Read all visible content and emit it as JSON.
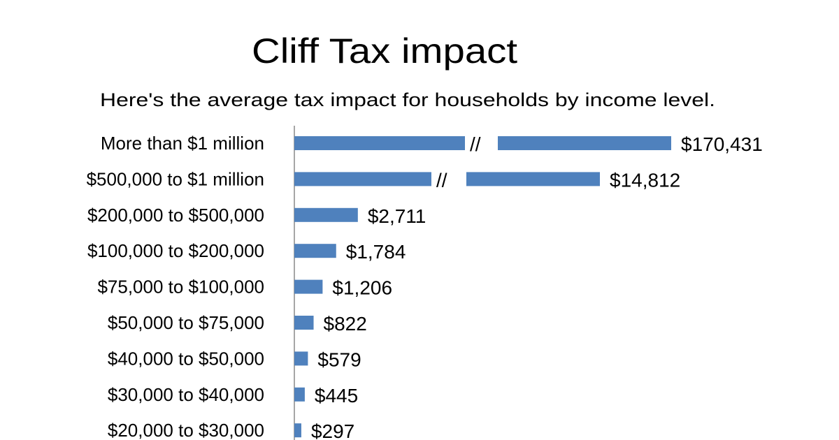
{
  "chart_data": {
    "type": "bar",
    "orientation": "horizontal",
    "title": "Cliff Tax impact",
    "subtitle": "Here's the average tax impact for households by income level.",
    "xlabel": "",
    "ylabel": "",
    "grid": false,
    "legend": "none",
    "bar_color": "#4F81BD",
    "axis_break_marker": "//",
    "broken_bars": [
      "More than $1 million",
      "$500,000 to $1 million"
    ],
    "categories": [
      "More than $1 million",
      "$500,000 to $1 million",
      "$200,000 to $500,000",
      "$100,000 to $200,000",
      "$75,000 to $100,000",
      "$50,000 to $75,000",
      "$40,000 to $50,000",
      "$30,000 to $40,000",
      "$20,000 to $30,000"
    ],
    "values": [
      170431,
      14812,
      2711,
      1784,
      1206,
      822,
      579,
      445,
      297
    ],
    "data_labels": [
      "$170,431",
      "$14,812",
      "$2,711",
      "$1,784",
      "$1,206",
      "$822",
      "$579",
      "$445",
      "$297"
    ]
  }
}
